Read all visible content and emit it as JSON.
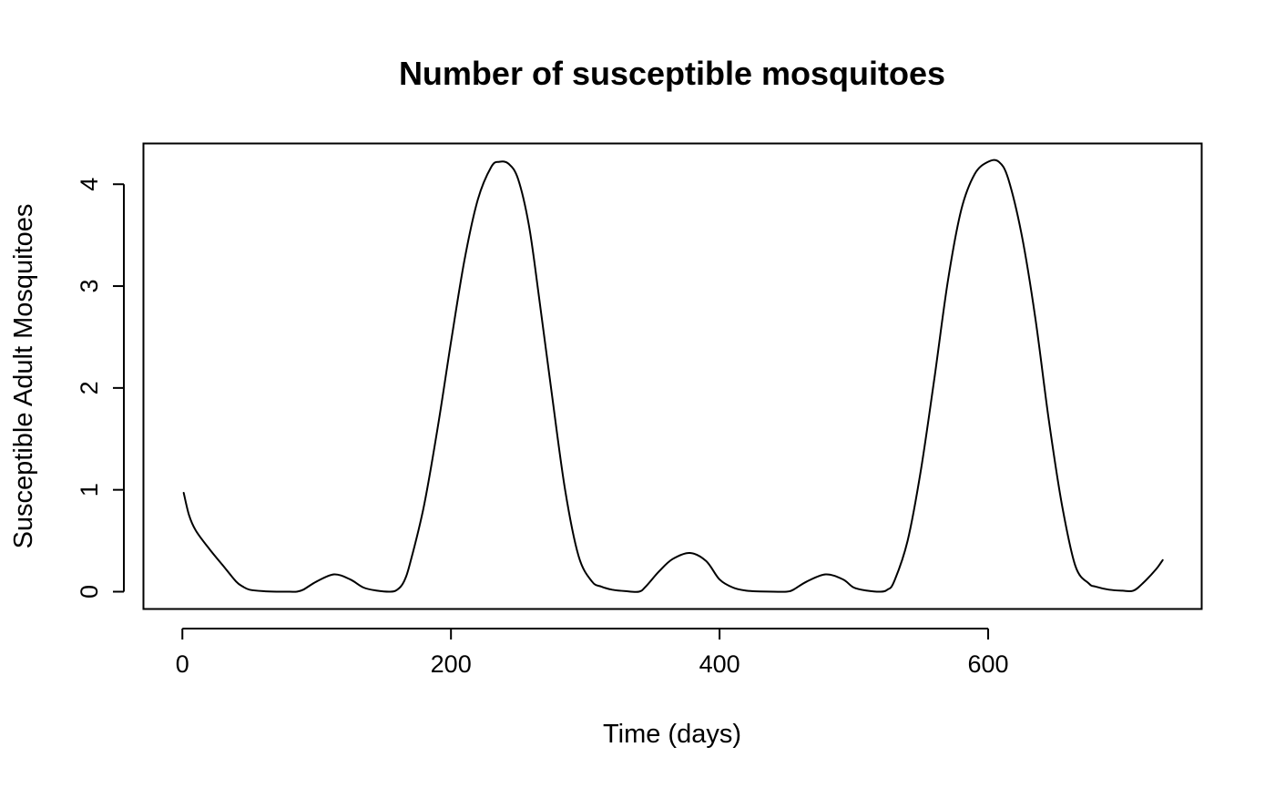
{
  "chart_data": {
    "type": "line",
    "title": "Number of susceptible mosquitoes",
    "xlabel": "Time (days)",
    "ylabel": "Susceptible Adult Mosquitoes",
    "xlim": [
      -29,
      759
    ],
    "ylim": [
      -0.17,
      4.4
    ],
    "x_ticks": [
      0,
      200,
      400,
      600
    ],
    "x_tick_labels": [
      "0",
      "200",
      "400",
      "600"
    ],
    "y_ticks": [
      0,
      1,
      2,
      3,
      4
    ],
    "y_tick_labels": [
      "0",
      "1",
      "2",
      "3",
      "4"
    ],
    "grid": false,
    "legend": "none",
    "line_color": "#000000",
    "series": [
      {
        "x": [
          1,
          5,
          10,
          20,
          30,
          40,
          45,
          50,
          60,
          70,
          80,
          85,
          90,
          100,
          113,
          125,
          135,
          145,
          155,
          160,
          165,
          170,
          180,
          190,
          200,
          210,
          220,
          230,
          236,
          243,
          250,
          258,
          265,
          275,
          285,
          295,
          305,
          312,
          320,
          330,
          340,
          345,
          355,
          365,
          378,
          390,
          400,
          410,
          420,
          430,
          440,
          450,
          455,
          465,
          479,
          492,
          500,
          510,
          520,
          525,
          530,
          540,
          550,
          560,
          570,
          580,
          590,
          600,
          608,
          615,
          625,
          635,
          645,
          655,
          665,
          675,
          680,
          690,
          700,
          708,
          715,
          725,
          730
        ],
        "y": [
          0.97,
          0.75,
          0.6,
          0.42,
          0.26,
          0.1,
          0.05,
          0.02,
          0.005,
          0.0,
          0.0,
          0.0,
          0.02,
          0.1,
          0.17,
          0.12,
          0.04,
          0.01,
          0.0,
          0.02,
          0.1,
          0.3,
          0.85,
          1.6,
          2.45,
          3.25,
          3.85,
          4.17,
          4.22,
          4.2,
          4.05,
          3.6,
          2.95,
          1.95,
          1.0,
          0.35,
          0.1,
          0.05,
          0.02,
          0.005,
          0.0,
          0.05,
          0.2,
          0.32,
          0.38,
          0.3,
          0.12,
          0.04,
          0.01,
          0.003,
          0.0,
          0.0,
          0.02,
          0.1,
          0.17,
          0.12,
          0.04,
          0.01,
          0.0,
          0.02,
          0.1,
          0.5,
          1.2,
          2.1,
          3.05,
          3.75,
          4.1,
          4.22,
          4.22,
          4.05,
          3.5,
          2.7,
          1.7,
          0.85,
          0.25,
          0.08,
          0.05,
          0.02,
          0.01,
          0.01,
          0.08,
          0.22,
          0.31
        ]
      }
    ]
  }
}
